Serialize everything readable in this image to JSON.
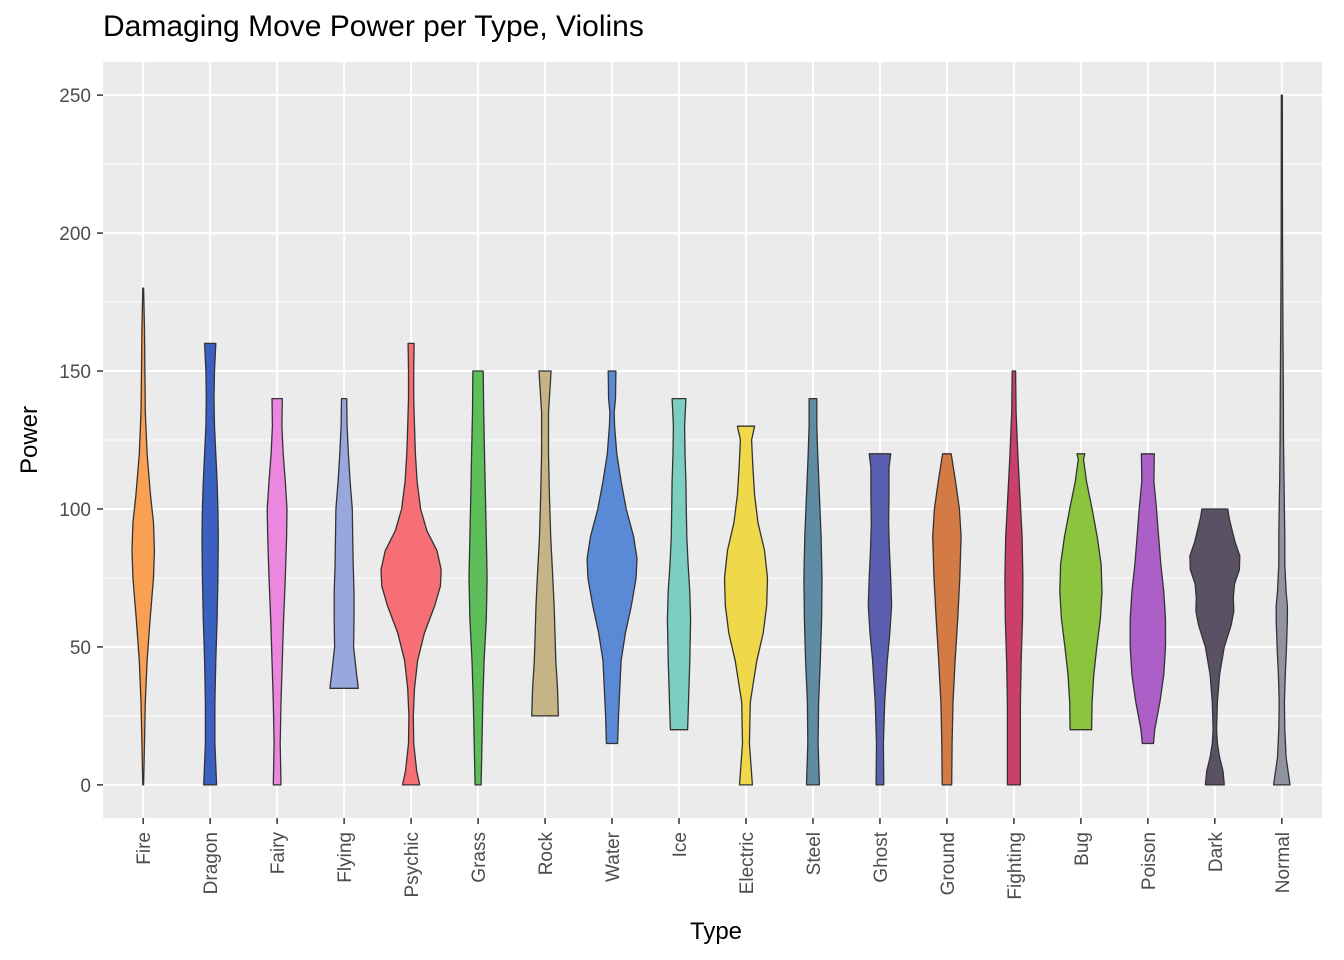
{
  "chart_data": {
    "type": "violin",
    "title": "Damaging Move Power per Type, Violins",
    "xlabel": "Type",
    "ylabel": "Power",
    "ylim": [
      -12,
      262
    ],
    "yticks": [
      0,
      50,
      100,
      150,
      200,
      250
    ],
    "grid": true,
    "legend": "none",
    "categories": [
      "Fire",
      "Dragon",
      "Fairy",
      "Flying",
      "Psychic",
      "Grass",
      "Rock",
      "Water",
      "Ice",
      "Electric",
      "Steel",
      "Ghost",
      "Ground",
      "Fighting",
      "Bug",
      "Poison",
      "Dark",
      "Normal"
    ],
    "series": [
      {
        "category": "Fire",
        "color": "#F9A055",
        "profile": [
          [
            0,
            0.01
          ],
          [
            15,
            0.03
          ],
          [
            30,
            0.05
          ],
          [
            45,
            0.09
          ],
          [
            60,
            0.16
          ],
          [
            75,
            0.24
          ],
          [
            85,
            0.26
          ],
          [
            95,
            0.24
          ],
          [
            105,
            0.17
          ],
          [
            120,
            0.09
          ],
          [
            135,
            0.05
          ],
          [
            150,
            0.04
          ],
          [
            165,
            0.03
          ],
          [
            180,
            0.01
          ]
        ]
      },
      {
        "category": "Dragon",
        "color": "#3A60C1",
        "profile": [
          [
            0,
            0.15
          ],
          [
            15,
            0.11
          ],
          [
            30,
            0.11
          ],
          [
            45,
            0.13
          ],
          [
            60,
            0.16
          ],
          [
            75,
            0.18
          ],
          [
            90,
            0.19
          ],
          [
            100,
            0.18
          ],
          [
            110,
            0.16
          ],
          [
            120,
            0.13
          ],
          [
            130,
            0.1
          ],
          [
            140,
            0.09
          ],
          [
            150,
            0.1
          ],
          [
            160,
            0.13
          ]
        ]
      },
      {
        "category": "Fairy",
        "color": "#EC87E0",
        "profile": [
          [
            0,
            0.09
          ],
          [
            15,
            0.07
          ],
          [
            30,
            0.09
          ],
          [
            45,
            0.12
          ],
          [
            60,
            0.15
          ],
          [
            75,
            0.19
          ],
          [
            90,
            0.22
          ],
          [
            100,
            0.23
          ],
          [
            110,
            0.19
          ],
          [
            120,
            0.14
          ],
          [
            130,
            0.11
          ],
          [
            140,
            0.12
          ]
        ]
      },
      {
        "category": "Flying",
        "color": "#98A7DE",
        "profile": [
          [
            35,
            0.33
          ],
          [
            40,
            0.29
          ],
          [
            50,
            0.22
          ],
          [
            60,
            0.23
          ],
          [
            70,
            0.23
          ],
          [
            80,
            0.21
          ],
          [
            90,
            0.2
          ],
          [
            100,
            0.19
          ],
          [
            110,
            0.14
          ],
          [
            120,
            0.1
          ],
          [
            130,
            0.07
          ],
          [
            140,
            0.06
          ]
        ]
      },
      {
        "category": "Psychic",
        "color": "#F56F75",
        "profile": [
          [
            0,
            0.2
          ],
          [
            5,
            0.13
          ],
          [
            15,
            0.06
          ],
          [
            25,
            0.05
          ],
          [
            35,
            0.08
          ],
          [
            45,
            0.15
          ],
          [
            55,
            0.31
          ],
          [
            65,
            0.55
          ],
          [
            72,
            0.68
          ],
          [
            78,
            0.7
          ],
          [
            85,
            0.6
          ],
          [
            92,
            0.37
          ],
          [
            100,
            0.22
          ],
          [
            110,
            0.14
          ],
          [
            120,
            0.1
          ],
          [
            130,
            0.08
          ],
          [
            140,
            0.06
          ],
          [
            150,
            0.06
          ],
          [
            160,
            0.07
          ]
        ]
      },
      {
        "category": "Grass",
        "color": "#5DBE5A",
        "profile": [
          [
            0,
            0.07
          ],
          [
            15,
            0.09
          ],
          [
            30,
            0.11
          ],
          [
            45,
            0.14
          ],
          [
            60,
            0.19
          ],
          [
            75,
            0.21
          ],
          [
            90,
            0.19
          ],
          [
            105,
            0.17
          ],
          [
            120,
            0.15
          ],
          [
            135,
            0.13
          ],
          [
            150,
            0.12
          ]
        ]
      },
      {
        "category": "Rock",
        "color": "#C4B486",
        "profile": [
          [
            25,
            0.31
          ],
          [
            35,
            0.29
          ],
          [
            45,
            0.25
          ],
          [
            55,
            0.23
          ],
          [
            65,
            0.21
          ],
          [
            75,
            0.18
          ],
          [
            90,
            0.13
          ],
          [
            105,
            0.1
          ],
          [
            120,
            0.08
          ],
          [
            135,
            0.08
          ],
          [
            150,
            0.14
          ]
        ]
      },
      {
        "category": "Water",
        "color": "#5A89D5",
        "profile": [
          [
            15,
            0.13
          ],
          [
            25,
            0.15
          ],
          [
            35,
            0.18
          ],
          [
            45,
            0.21
          ],
          [
            55,
            0.31
          ],
          [
            65,
            0.45
          ],
          [
            75,
            0.56
          ],
          [
            82,
            0.58
          ],
          [
            90,
            0.5
          ],
          [
            100,
            0.33
          ],
          [
            110,
            0.21
          ],
          [
            120,
            0.11
          ],
          [
            130,
            0.06
          ],
          [
            135,
            0.05
          ],
          [
            140,
            0.08
          ],
          [
            150,
            0.09
          ]
        ]
      },
      {
        "category": "Ice",
        "color": "#7BCEC0",
        "profile": [
          [
            20,
            0.2
          ],
          [
            30,
            0.22
          ],
          [
            45,
            0.25
          ],
          [
            60,
            0.27
          ],
          [
            70,
            0.25
          ],
          [
            80,
            0.21
          ],
          [
            90,
            0.18
          ],
          [
            100,
            0.17
          ],
          [
            110,
            0.16
          ],
          [
            120,
            0.14
          ],
          [
            130,
            0.13
          ],
          [
            140,
            0.16
          ]
        ]
      },
      {
        "category": "Electric",
        "color": "#F0D84B",
        "profile": [
          [
            0,
            0.15
          ],
          [
            15,
            0.08
          ],
          [
            30,
            0.1
          ],
          [
            45,
            0.25
          ],
          [
            55,
            0.4
          ],
          [
            65,
            0.48
          ],
          [
            75,
            0.5
          ],
          [
            85,
            0.43
          ],
          [
            95,
            0.28
          ],
          [
            105,
            0.2
          ],
          [
            115,
            0.16
          ],
          [
            125,
            0.13
          ],
          [
            130,
            0.2
          ]
        ]
      },
      {
        "category": "Steel",
        "color": "#5F8CA5",
        "profile": [
          [
            0,
            0.15
          ],
          [
            15,
            0.12
          ],
          [
            30,
            0.13
          ],
          [
            45,
            0.17
          ],
          [
            60,
            0.2
          ],
          [
            75,
            0.21
          ],
          [
            90,
            0.19
          ],
          [
            105,
            0.15
          ],
          [
            120,
            0.11
          ],
          [
            130,
            0.09
          ],
          [
            140,
            0.09
          ]
        ]
      },
      {
        "category": "Ghost",
        "color": "#5A60AF",
        "profile": [
          [
            0,
            0.09
          ],
          [
            15,
            0.08
          ],
          [
            30,
            0.11
          ],
          [
            45,
            0.17
          ],
          [
            55,
            0.23
          ],
          [
            65,
            0.27
          ],
          [
            75,
            0.25
          ],
          [
            85,
            0.22
          ],
          [
            95,
            0.2
          ],
          [
            105,
            0.21
          ],
          [
            115,
            0.21
          ],
          [
            120,
            0.25
          ]
        ]
      },
      {
        "category": "Ground",
        "color": "#D47B45",
        "profile": [
          [
            0,
            0.11
          ],
          [
            15,
            0.12
          ],
          [
            30,
            0.14
          ],
          [
            45,
            0.19
          ],
          [
            60,
            0.25
          ],
          [
            75,
            0.3
          ],
          [
            90,
            0.33
          ],
          [
            100,
            0.29
          ],
          [
            110,
            0.2
          ],
          [
            120,
            0.1
          ]
        ]
      },
      {
        "category": "Fighting",
        "color": "#CB3F6B",
        "profile": [
          [
            0,
            0.15
          ],
          [
            15,
            0.15
          ],
          [
            30,
            0.15
          ],
          [
            45,
            0.17
          ],
          [
            60,
            0.2
          ],
          [
            75,
            0.21
          ],
          [
            90,
            0.19
          ],
          [
            105,
            0.14
          ],
          [
            120,
            0.09
          ],
          [
            135,
            0.05
          ],
          [
            150,
            0.04
          ]
        ]
      },
      {
        "category": "Bug",
        "color": "#8CC43E",
        "profile": [
          [
            20,
            0.25
          ],
          [
            30,
            0.26
          ],
          [
            40,
            0.3
          ],
          [
            50,
            0.37
          ],
          [
            60,
            0.45
          ],
          [
            70,
            0.49
          ],
          [
            80,
            0.47
          ],
          [
            90,
            0.38
          ],
          [
            100,
            0.26
          ],
          [
            110,
            0.13
          ],
          [
            118,
            0.06
          ],
          [
            120,
            0.09
          ]
        ]
      },
      {
        "category": "Poison",
        "color": "#AC5FC7",
        "profile": [
          [
            15,
            0.13
          ],
          [
            20,
            0.16
          ],
          [
            30,
            0.28
          ],
          [
            40,
            0.37
          ],
          [
            50,
            0.41
          ],
          [
            60,
            0.41
          ],
          [
            70,
            0.37
          ],
          [
            80,
            0.3
          ],
          [
            90,
            0.25
          ],
          [
            100,
            0.2
          ],
          [
            110,
            0.14
          ],
          [
            120,
            0.15
          ]
        ]
      },
      {
        "category": "Dark",
        "color": "#5A5165",
        "profile": [
          [
            0,
            0.22
          ],
          [
            5,
            0.19
          ],
          [
            10,
            0.11
          ],
          [
            15,
            0.06
          ],
          [
            20,
            0.04
          ],
          [
            30,
            0.06
          ],
          [
            40,
            0.11
          ],
          [
            50,
            0.22
          ],
          [
            58,
            0.38
          ],
          [
            63,
            0.44
          ],
          [
            68,
            0.43
          ],
          [
            73,
            0.46
          ],
          [
            78,
            0.57
          ],
          [
            83,
            0.58
          ],
          [
            88,
            0.47
          ],
          [
            93,
            0.39
          ],
          [
            97,
            0.33
          ],
          [
            100,
            0.3
          ]
        ]
      },
      {
        "category": "Normal",
        "color": "#8F94A0",
        "profile": [
          [
            0,
            0.19
          ],
          [
            10,
            0.1
          ],
          [
            20,
            0.07
          ],
          [
            30,
            0.06
          ],
          [
            40,
            0.08
          ],
          [
            50,
            0.11
          ],
          [
            60,
            0.13
          ],
          [
            65,
            0.13
          ],
          [
            70,
            0.1
          ],
          [
            80,
            0.07
          ],
          [
            90,
            0.07
          ],
          [
            100,
            0.06
          ],
          [
            110,
            0.05
          ],
          [
            125,
            0.04
          ],
          [
            145,
            0.035
          ],
          [
            165,
            0.025
          ],
          [
            200,
            0.015
          ],
          [
            250,
            0.012
          ]
        ]
      }
    ]
  }
}
